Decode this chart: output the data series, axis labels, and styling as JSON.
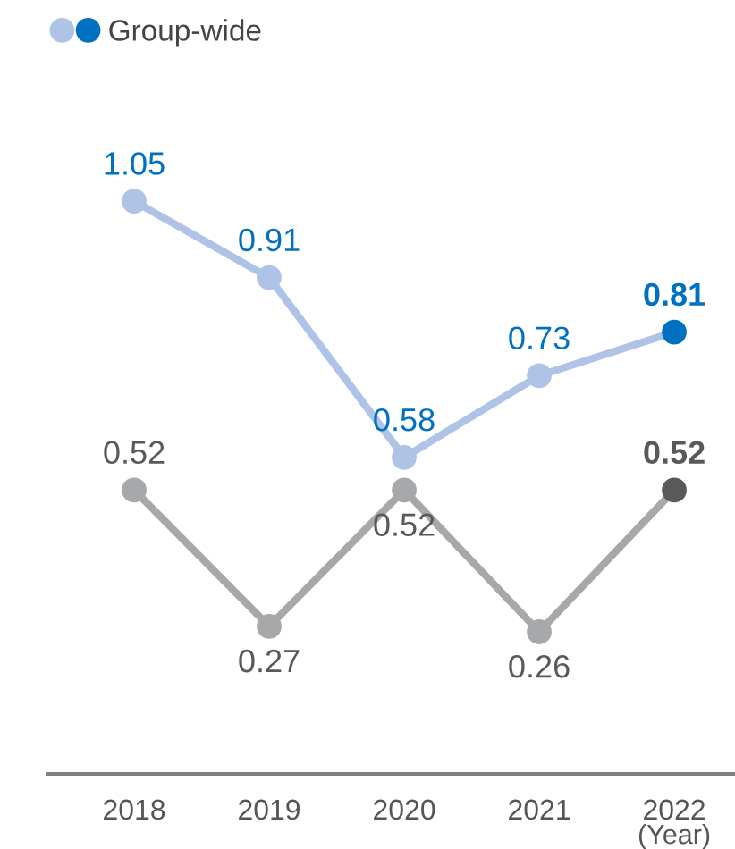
{
  "chart_data": {
    "type": "line",
    "categories": [
      "2018",
      "2019",
      "2020",
      "2021",
      "2022"
    ],
    "xlabel": "(Year)",
    "series": [
      {
        "name": "Group-wide",
        "color": "#aec3e6",
        "colors": [
          "#aec3e6",
          "#aec3e6",
          "#aec3e6",
          "#aec3e6",
          "#0070c0"
        ],
        "values": [
          1.05,
          0.91,
          0.58,
          0.73,
          0.81
        ]
      },
      {
        "color": "#a7a8aa",
        "colors": [
          "#a7a8aa",
          "#a7a8aa",
          "#a7a8aa",
          "#a7a8aa",
          "#58595b"
        ],
        "values": [
          0.52,
          0.27,
          0.52,
          0.26,
          0.52
        ]
      }
    ],
    "tick_labels": "x",
    "data_labels": true,
    "legend": "top left",
    "marker": "circle",
    "line_style": "solid"
  }
}
